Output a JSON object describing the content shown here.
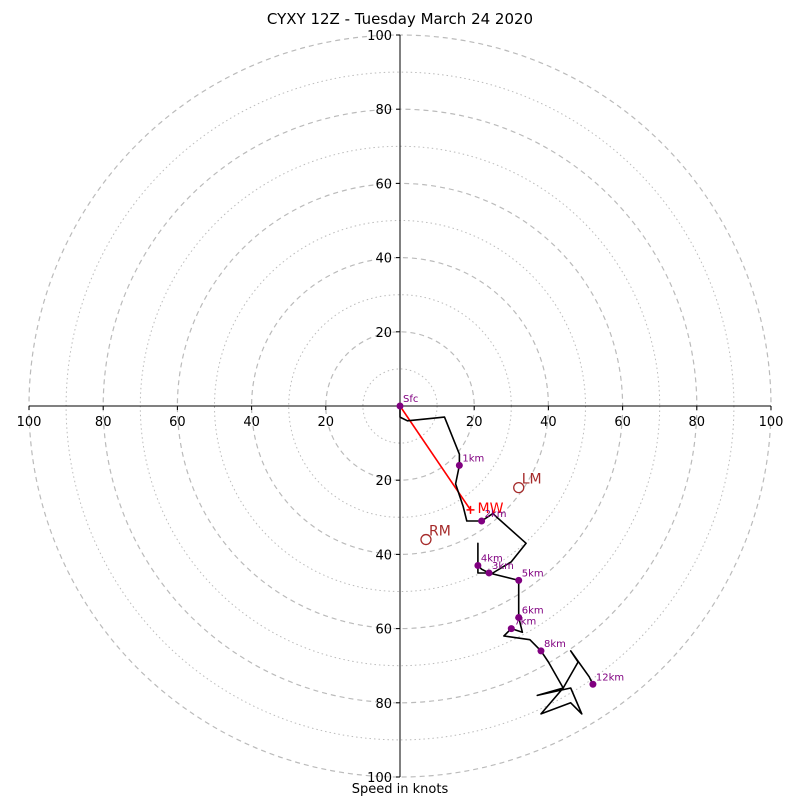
{
  "chart_data": {
    "type": "scatter",
    "title": "CYXY 12Z - Tuesday March 24 2020",
    "xlabel": "Speed in knots",
    "range": [
      -100,
      100
    ],
    "rings_major": [
      20,
      40,
      60,
      80,
      100
    ],
    "rings_minor": [
      10,
      30,
      50,
      70,
      90
    ],
    "x_ticks": [
      "100",
      "80",
      "60",
      "40",
      "20",
      "20",
      "40",
      "60",
      "80",
      "100"
    ],
    "x_tick_values": [
      -100,
      -80,
      -60,
      -40,
      -20,
      20,
      40,
      60,
      80,
      100
    ],
    "y_ticks": [
      "100",
      "80",
      "60",
      "40",
      "20",
      "20",
      "40",
      "60",
      "80",
      "100"
    ],
    "y_tick_values": [
      100,
      80,
      60,
      40,
      20,
      -20,
      -40,
      -60,
      -80,
      -100
    ],
    "colors": {
      "ring": "#bbbbbb",
      "trace": "#000000",
      "marker": "#800080",
      "mean_wind": "#ff0000",
      "storm": "#a52a2a"
    },
    "series": [
      {
        "points": [
          [
            0,
            0
          ],
          [
            0,
            -3
          ],
          [
            2,
            -4
          ],
          [
            12,
            -3
          ],
          [
            16,
            -13
          ],
          [
            16,
            -16
          ],
          [
            15,
            -21
          ],
          [
            17,
            -27
          ],
          [
            18,
            -31
          ],
          [
            20,
            -31
          ],
          [
            22,
            -31
          ],
          [
            25,
            -29
          ],
          [
            34,
            -37
          ],
          [
            30,
            -42
          ],
          [
            25,
            -45
          ],
          [
            24,
            -45
          ],
          [
            22,
            -44
          ],
          [
            21,
            -43
          ],
          [
            21,
            -37
          ],
          [
            21,
            -42
          ],
          [
            21,
            -45
          ],
          [
            24,
            -45
          ],
          [
            32,
            -47
          ],
          [
            32,
            -55
          ],
          [
            32,
            -57
          ],
          [
            33,
            -61
          ],
          [
            30,
            -60
          ],
          [
            28,
            -62
          ],
          [
            35,
            -63
          ],
          [
            38,
            -66
          ],
          [
            40,
            -69
          ],
          [
            44,
            -76
          ],
          [
            37,
            -78
          ],
          [
            46,
            -76
          ],
          [
            49,
            -83
          ],
          [
            46,
            -80
          ],
          [
            38,
            -83
          ],
          [
            44,
            -76
          ],
          [
            48,
            -69
          ],
          [
            46,
            -66
          ],
          [
            51,
            -73
          ],
          [
            52,
            -75
          ]
        ]
      }
    ],
    "height_labels": [
      {
        "label": "Sfc",
        "u": 0,
        "v": 0
      },
      {
        "label": "1km",
        "u": 16,
        "v": -16
      },
      {
        "label": "2km",
        "u": 22,
        "v": -31
      },
      {
        "label": "3km",
        "u": 24,
        "v": -45
      },
      {
        "label": "4km",
        "u": 21,
        "v": -43
      },
      {
        "label": "5km",
        "u": 32,
        "v": -47
      },
      {
        "label": "6km",
        "u": 32,
        "v": -57
      },
      {
        "label": "7km",
        "u": 30,
        "v": -60
      },
      {
        "label": "8km",
        "u": 38,
        "v": -66
      },
      {
        "label": "12km",
        "u": 52,
        "v": -75
      }
    ],
    "mean_wind_label": "MW",
    "mean_wind": {
      "u": 19,
      "v": -28
    },
    "storm_motion": [
      {
        "label": "LM",
        "u": 32,
        "v": -22
      },
      {
        "label": "RM",
        "u": 7,
        "v": -36
      }
    ]
  }
}
